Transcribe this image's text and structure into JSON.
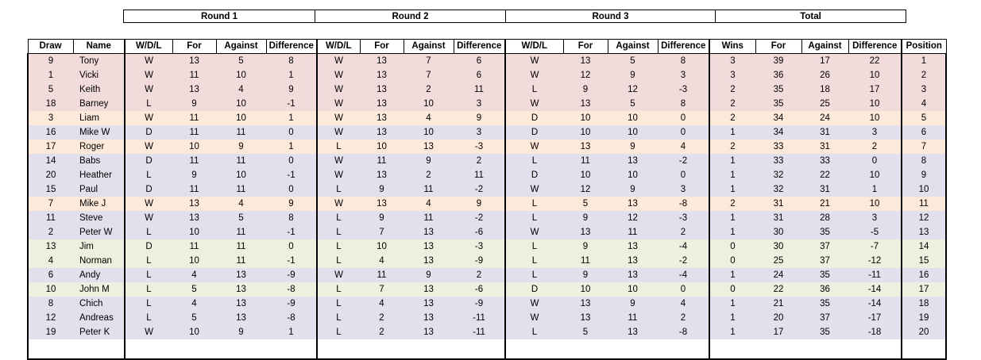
{
  "round_headers": [
    "Round 1",
    "Round 2",
    "Round 3",
    "Total"
  ],
  "column_headers": [
    "Draw",
    "Name",
    "W/D/L",
    "For",
    "Against",
    "Difference",
    "W/D/L",
    "For",
    "Against",
    "Difference",
    "W/D/L",
    "For",
    "Against",
    "Difference",
    "Wins",
    "For",
    "Against",
    "Difference",
    "Position"
  ],
  "row_colors": {
    "red": "#f2dcdb",
    "orange": "#fde9d9",
    "purple": "#e4dfec",
    "green": "#ebf1de"
  },
  "rows": [
    {
      "color": "red",
      "cells": [
        "9",
        "Tony",
        "W",
        "13",
        "5",
        "8",
        "W",
        "13",
        "7",
        "6",
        "W",
        "13",
        "5",
        "8",
        "3",
        "39",
        "17",
        "22",
        "1"
      ]
    },
    {
      "color": "red",
      "cells": [
        "1",
        "Vicki",
        "W",
        "11",
        "10",
        "1",
        "W",
        "13",
        "7",
        "6",
        "W",
        "12",
        "9",
        "3",
        "3",
        "36",
        "26",
        "10",
        "2"
      ]
    },
    {
      "color": "red",
      "cells": [
        "5",
        "Keith",
        "W",
        "13",
        "4",
        "9",
        "W",
        "13",
        "2",
        "11",
        "L",
        "9",
        "12",
        "-3",
        "2",
        "35",
        "18",
        "17",
        "3"
      ]
    },
    {
      "color": "red",
      "cells": [
        "18",
        "Barney",
        "L",
        "9",
        "10",
        "-1",
        "W",
        "13",
        "10",
        "3",
        "W",
        "13",
        "5",
        "8",
        "2",
        "35",
        "25",
        "10",
        "4"
      ]
    },
    {
      "color": "orange",
      "cells": [
        "3",
        "Liam",
        "W",
        "11",
        "10",
        "1",
        "W",
        "13",
        "4",
        "9",
        "D",
        "10",
        "10",
        "0",
        "2",
        "34",
        "24",
        "10",
        "5"
      ]
    },
    {
      "color": "purple",
      "cells": [
        "16",
        "Mike W",
        "D",
        "11",
        "11",
        "0",
        "W",
        "13",
        "10",
        "3",
        "D",
        "10",
        "10",
        "0",
        "1",
        "34",
        "31",
        "3",
        "6"
      ]
    },
    {
      "color": "orange",
      "cells": [
        "17",
        "Roger",
        "W",
        "10",
        "9",
        "1",
        "L",
        "10",
        "13",
        "-3",
        "W",
        "13",
        "9",
        "4",
        "2",
        "33",
        "31",
        "2",
        "7"
      ]
    },
    {
      "color": "purple",
      "cells": [
        "14",
        "Babs",
        "D",
        "11",
        "11",
        "0",
        "W",
        "11",
        "9",
        "2",
        "L",
        "11",
        "13",
        "-2",
        "1",
        "33",
        "33",
        "0",
        "8"
      ]
    },
    {
      "color": "purple",
      "cells": [
        "20",
        "Heather",
        "L",
        "9",
        "10",
        "-1",
        "W",
        "13",
        "2",
        "11",
        "D",
        "10",
        "10",
        "0",
        "1",
        "32",
        "22",
        "10",
        "9"
      ]
    },
    {
      "color": "purple",
      "cells": [
        "15",
        "Paul",
        "D",
        "11",
        "11",
        "0",
        "L",
        "9",
        "11",
        "-2",
        "W",
        "12",
        "9",
        "3",
        "1",
        "32",
        "31",
        "1",
        "10"
      ]
    },
    {
      "color": "orange",
      "cells": [
        "7",
        "Mike J",
        "W",
        "13",
        "4",
        "9",
        "W",
        "13",
        "4",
        "9",
        "L",
        "5",
        "13",
        "-8",
        "2",
        "31",
        "21",
        "10",
        "11"
      ]
    },
    {
      "color": "purple",
      "cells": [
        "11",
        "Steve",
        "W",
        "13",
        "5",
        "8",
        "L",
        "9",
        "11",
        "-2",
        "L",
        "9",
        "12",
        "-3",
        "1",
        "31",
        "28",
        "3",
        "12"
      ]
    },
    {
      "color": "purple",
      "cells": [
        "2",
        "Peter W",
        "L",
        "10",
        "11",
        "-1",
        "L",
        "7",
        "13",
        "-6",
        "W",
        "13",
        "11",
        "2",
        "1",
        "30",
        "35",
        "-5",
        "13"
      ]
    },
    {
      "color": "green",
      "cells": [
        "13",
        "Jim",
        "D",
        "11",
        "11",
        "0",
        "L",
        "10",
        "13",
        "-3",
        "L",
        "9",
        "13",
        "-4",
        "0",
        "30",
        "37",
        "-7",
        "14"
      ]
    },
    {
      "color": "green",
      "cells": [
        "4",
        "Norman",
        "L",
        "10",
        "11",
        "-1",
        "L",
        "4",
        "13",
        "-9",
        "L",
        "11",
        "13",
        "-2",
        "0",
        "25",
        "37",
        "-12",
        "15"
      ]
    },
    {
      "color": "purple",
      "cells": [
        "6",
        "Andy",
        "L",
        "4",
        "13",
        "-9",
        "W",
        "11",
        "9",
        "2",
        "L",
        "9",
        "13",
        "-4",
        "1",
        "24",
        "35",
        "-11",
        "16"
      ]
    },
    {
      "color": "green",
      "cells": [
        "10",
        "John M",
        "L",
        "5",
        "13",
        "-8",
        "L",
        "7",
        "13",
        "-6",
        "D",
        "10",
        "10",
        "0",
        "0",
        "22",
        "36",
        "-14",
        "17"
      ]
    },
    {
      "color": "purple",
      "cells": [
        "8",
        "Chich",
        "L",
        "4",
        "13",
        "-9",
        "L",
        "4",
        "13",
        "-9",
        "W",
        "13",
        "9",
        "4",
        "1",
        "21",
        "35",
        "-14",
        "18"
      ]
    },
    {
      "color": "purple",
      "cells": [
        "12",
        "Andreas",
        "L",
        "5",
        "13",
        "-8",
        "L",
        "2",
        "13",
        "-11",
        "W",
        "13",
        "11",
        "2",
        "1",
        "20",
        "37",
        "-17",
        "19"
      ]
    },
    {
      "color": "purple",
      "cells": [
        "19",
        "Peter K",
        "W",
        "10",
        "9",
        "1",
        "L",
        "2",
        "13",
        "-11",
        "L",
        "5",
        "13",
        "-8",
        "1",
        "17",
        "35",
        "-18",
        "20"
      ]
    },
    {
      "color": "blank",
      "cells": [
        "",
        "",
        "",
        "",
        "",
        "",
        "",
        "",
        "",
        "",
        "",
        "",
        "",
        "",
        "",
        "",
        "",
        "",
        ""
      ]
    }
  ]
}
